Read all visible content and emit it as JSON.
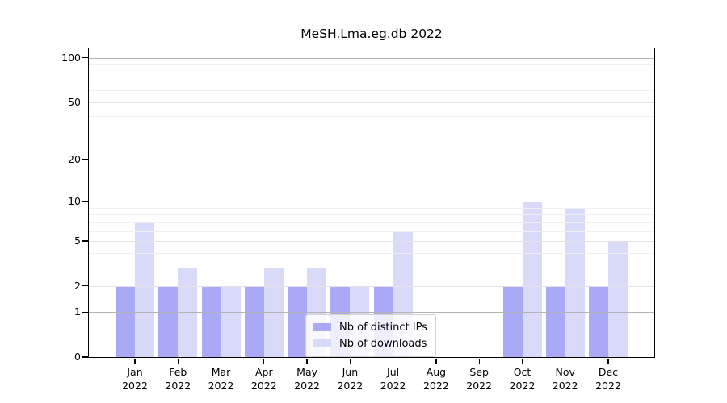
{
  "title": "MeSH.Lma.eg.db 2022",
  "chart_data": {
    "type": "bar",
    "title": "MeSH.Lma.eg.db 2022",
    "categories": [
      "Jan 2022",
      "Feb 2022",
      "Mar 2022",
      "Apr 2022",
      "May 2022",
      "Jun 2022",
      "Jul 2022",
      "Aug 2022",
      "Sep 2022",
      "Oct 2022",
      "Nov 2022",
      "Dec 2022"
    ],
    "series": [
      {
        "name": "Nb of distinct IPs",
        "color": "#a9a9f5",
        "values": [
          2,
          2,
          2,
          2,
          2,
          2,
          2,
          0,
          0,
          2,
          2,
          2
        ]
      },
      {
        "name": "Nb of downloads",
        "color": "#d9d9f8",
        "values": [
          7,
          3,
          2,
          3,
          3,
          2,
          6,
          0,
          0,
          10,
          9,
          5
        ]
      }
    ],
    "xlabel": "",
    "ylabel": "",
    "yscale": "log1p",
    "ylim": [
      0,
      116
    ],
    "yticks": [
      0,
      1,
      2,
      5,
      10,
      20,
      50,
      100
    ],
    "minor_gridlines": [
      3,
      4,
      6,
      7,
      8,
      9,
      30,
      40,
      60,
      70,
      80,
      90
    ],
    "grid": true,
    "legend_position": "lower center",
    "grid_colors": {
      "decade": "#b3b3b3",
      "major": "#e3e3e3",
      "minor": "#f0f0f0"
    }
  }
}
